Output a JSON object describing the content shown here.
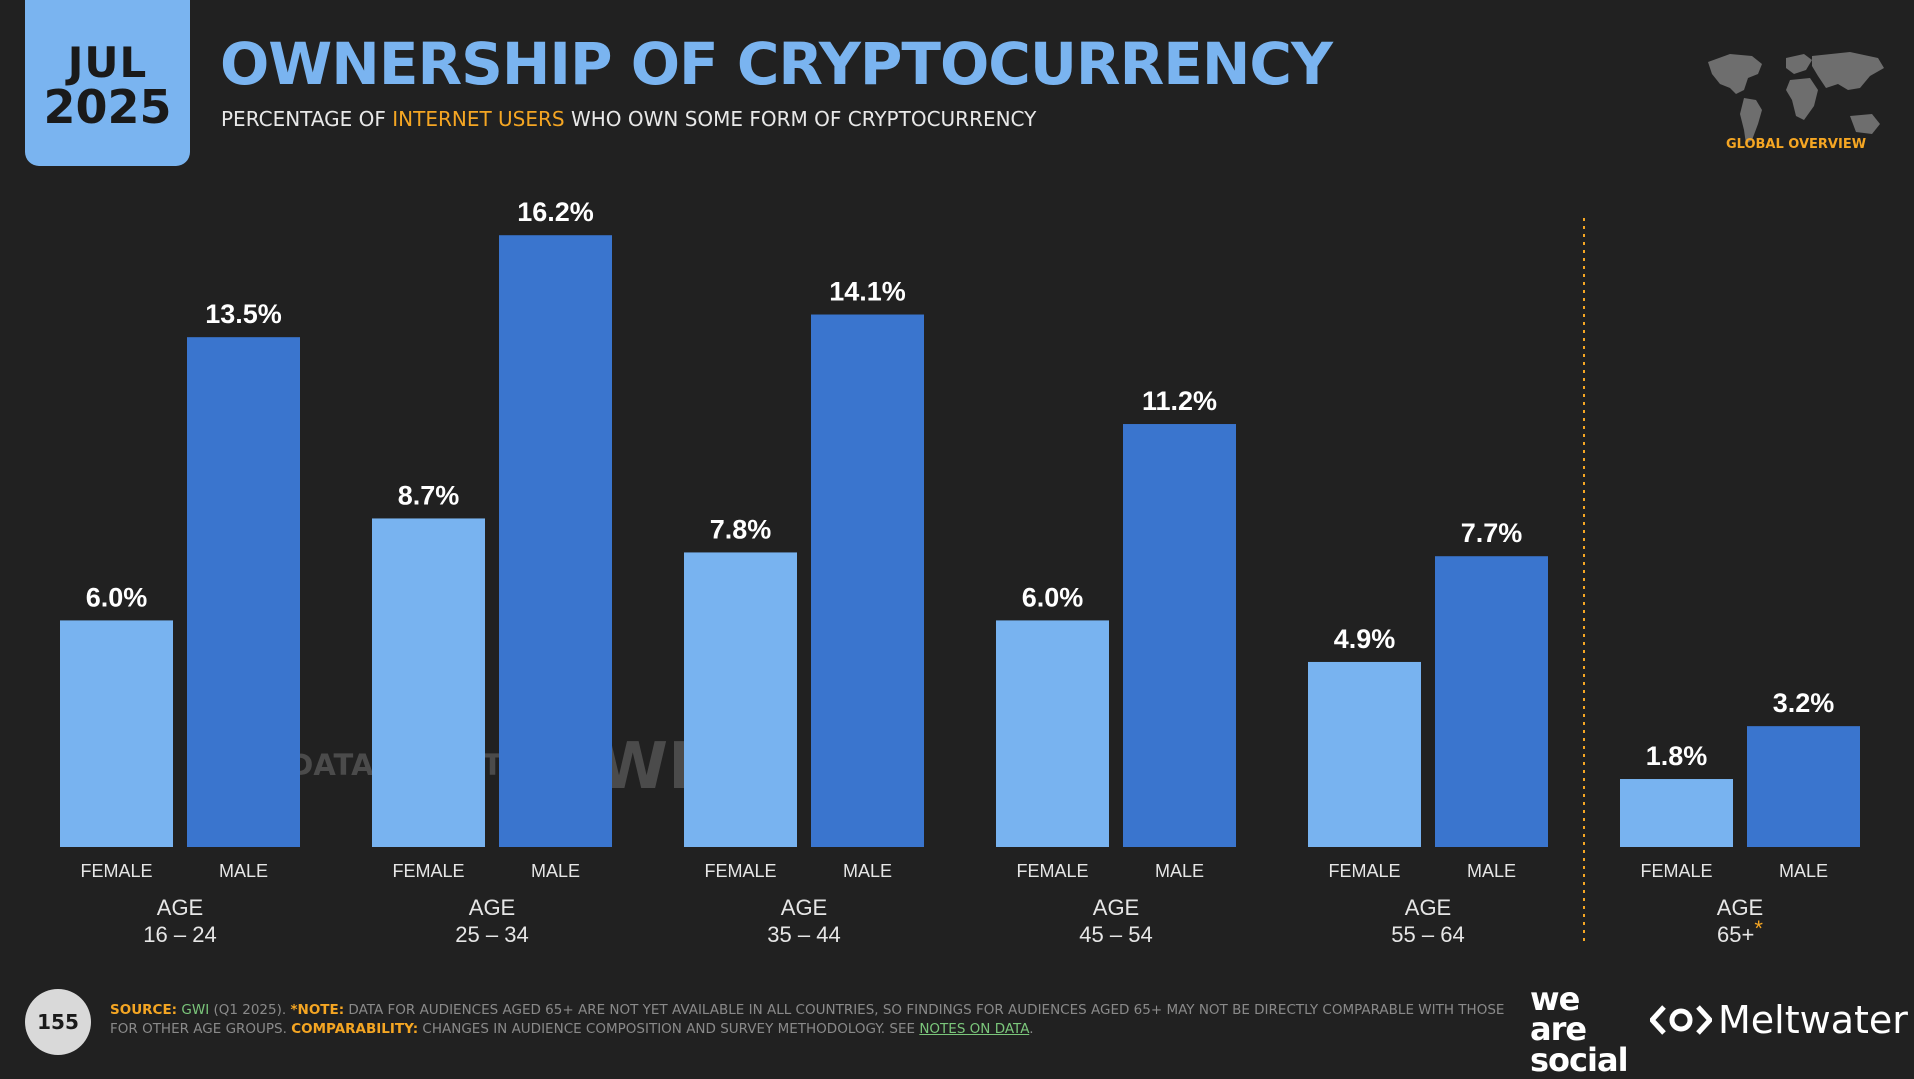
{
  "header": {
    "month": "JUL",
    "year": "2025",
    "title": "OWNERSHIP OF CRYPTOCURRENCY",
    "subtitle_pre": "PERCENTAGE OF ",
    "subtitle_highlight": "INTERNET USERS",
    "subtitle_post": " WHO OWN SOME FORM OF CRYPTOCURRENCY",
    "region_label": "GLOBAL OVERVIEW"
  },
  "watermarks": {
    "datareportal": "DATAREPORTAL",
    "gwi": "GWI."
  },
  "footer": {
    "page_number": "155",
    "source_key": "SOURCE:",
    "source_name": "GWI",
    "source_rest": " (Q1 2025). ",
    "note_key": "*NOTE:",
    "note_text": " DATA FOR AUDIENCES AGED 65+ ARE NOT YET AVAILABLE IN ALL COUNTRIES, SO FINDINGS FOR AUDIENCES AGED 65+ MAY NOT BE DIRECTLY COMPARABLE WITH THOSE FOR OTHER AGE GROUPS. ",
    "comp_key": "COMPARABILITY:",
    "comp_text": " CHANGES IN AUDIENCE COMPOSITION AND SURVEY METHODOLOGY. SEE ",
    "link_text": "NOTES ON DATA",
    "end": "."
  },
  "brands": {
    "was_1": "we",
    "was_2": "are",
    "was_3": "social",
    "meltwater": "Meltwater"
  },
  "colors": {
    "background": "#212121",
    "female": "#78b3f0",
    "male": "#3a75ce",
    "accent": "#f5a623",
    "title": "#7ab4f0"
  },
  "chart_data": {
    "type": "bar",
    "title": "OWNERSHIP OF CRYPTOCURRENCY",
    "ylim": [
      0,
      17
    ],
    "value_suffix": "%",
    "sub_categories": [
      "FEMALE",
      "MALE"
    ],
    "group_prefix": "AGE",
    "groups": [
      {
        "label": "16 – 24",
        "values": [
          6.0,
          13.5
        ]
      },
      {
        "label": "25 – 34",
        "values": [
          8.7,
          16.2
        ]
      },
      {
        "label": "35 – 44",
        "values": [
          7.8,
          14.1
        ]
      },
      {
        "label": "45 – 54",
        "values": [
          6.0,
          11.2
        ]
      },
      {
        "label": "55 – 64",
        "values": [
          4.9,
          7.7
        ]
      },
      {
        "label": "65+",
        "values": [
          1.8,
          3.2
        ],
        "asterisk": "*"
      }
    ]
  }
}
